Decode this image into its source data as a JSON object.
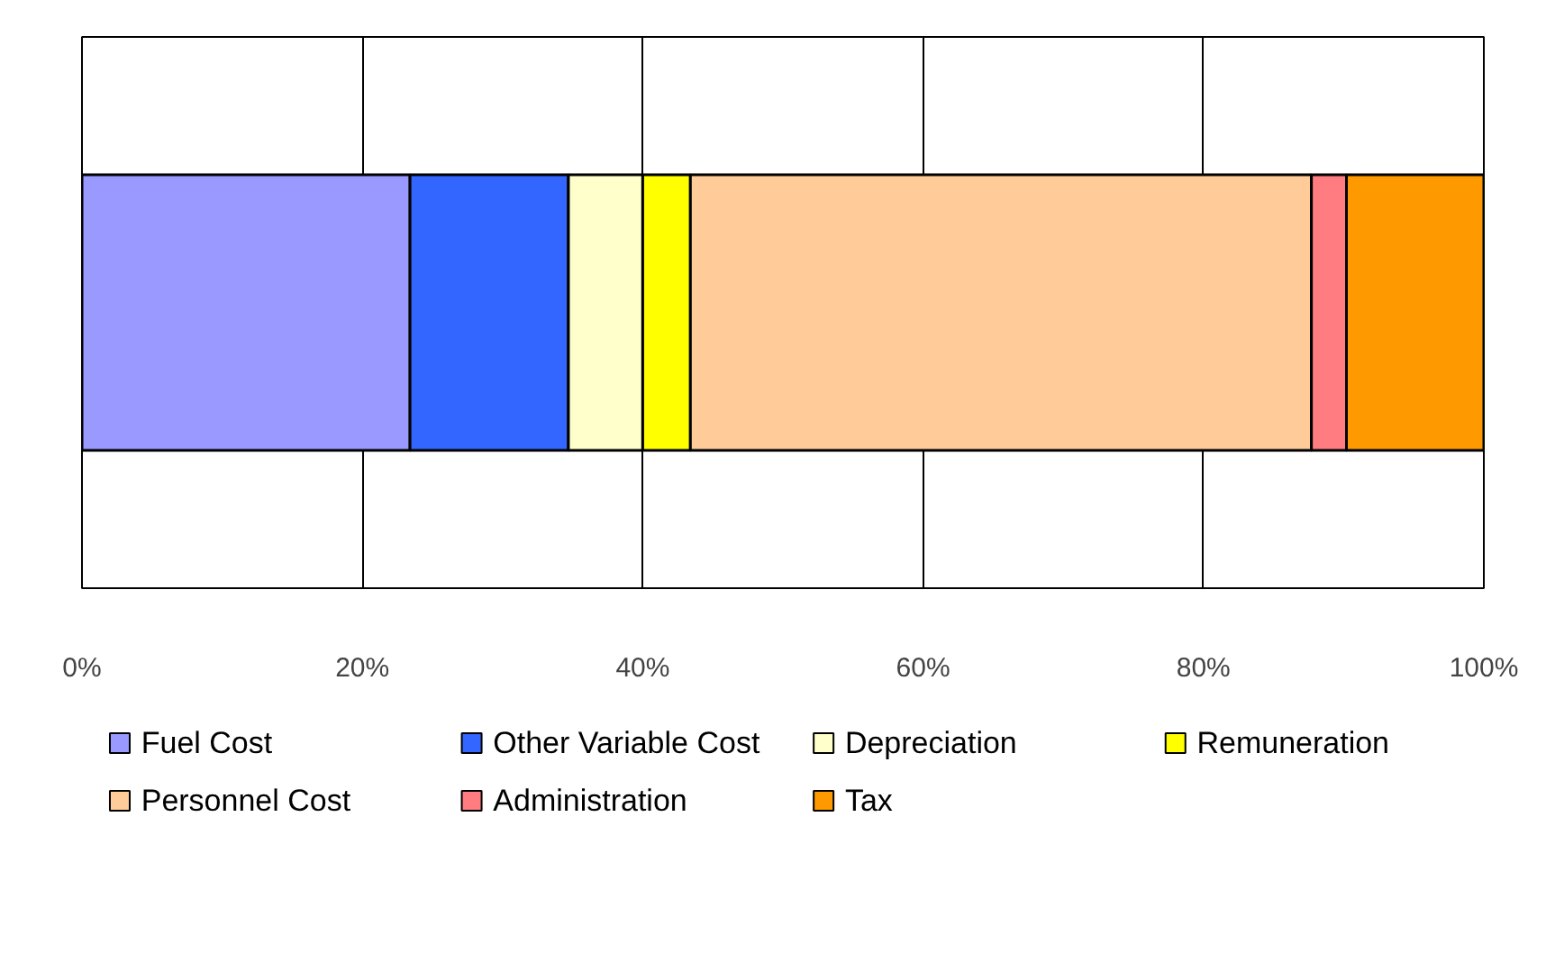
{
  "chart_data": {
    "type": "bar",
    "orientation": "horizontal",
    "stacked": true,
    "categories": [
      null
    ],
    "series": [
      {
        "name": "Fuel Cost",
        "color": "#9999ff",
        "values": [
          23.4
        ]
      },
      {
        "name": "Other Variable Cost",
        "color": "#3366ff",
        "values": [
          11.3
        ]
      },
      {
        "name": "Depreciation",
        "color": "#ffffcc",
        "values": [
          5.3
        ]
      },
      {
        "name": "Remuneration",
        "color": "#ffff00",
        "values": [
          3.4
        ]
      },
      {
        "name": "Personnel Cost",
        "color": "#ffcc99",
        "values": [
          44.3
        ]
      },
      {
        "name": "Administration",
        "color": "#ff7c80",
        "values": [
          2.5
        ]
      },
      {
        "name": "Tax",
        "color": "#ff9900",
        "values": [
          9.8
        ]
      }
    ],
    "xlim": [
      0,
      100
    ],
    "xticks": [
      {
        "value": 0,
        "label": "0%"
      },
      {
        "value": 20,
        "label": "20%"
      },
      {
        "value": 40,
        "label": "40%"
      },
      {
        "value": 60,
        "label": "60%"
      },
      {
        "value": 80,
        "label": "80%"
      },
      {
        "value": 100,
        "label": "100%"
      }
    ],
    "grid": "x",
    "legend": "bottom",
    "tick_labels": "x"
  }
}
